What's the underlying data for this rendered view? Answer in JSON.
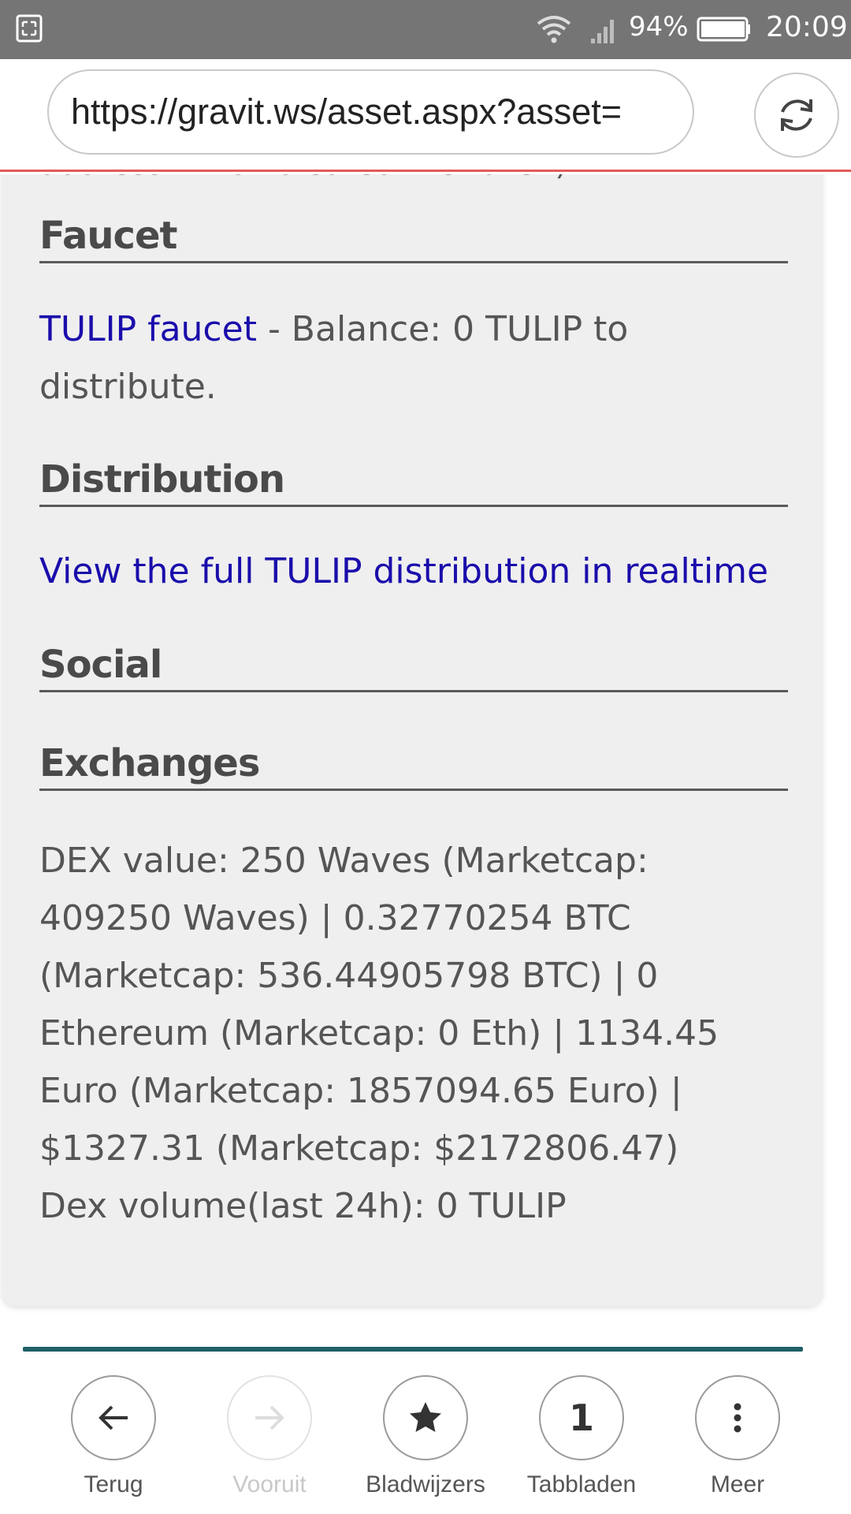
{
  "status_bar": {
    "battery_percent": "94%",
    "time": "20:09",
    "icons": [
      "screenshot-icon",
      "wifi-icon",
      "signal-icon",
      "battery-icon"
    ]
  },
  "browser": {
    "url": "https://gravit.ws/asset.aspx?asset=",
    "reload_icon": "reload-icon"
  },
  "page": {
    "clipped_top_text": "address which created the token)",
    "faucet": {
      "heading": "Faucet",
      "link_text": "TULIP faucet",
      "text": " - Balance: 0 TULIP to distribute."
    },
    "distribution": {
      "heading": "Distribution",
      "link_text": "View the full TULIP distribution in realtime"
    },
    "social": {
      "heading": "Social"
    },
    "exchanges": {
      "heading": "Exchanges",
      "dex_value": "DEX value: 250 Waves (Marketcap: 409250 Waves) | 0.32770254 BTC (Marketcap: 536.44905798 BTC) | 0 Ethereum (Marketcap: 0 Eth) | 1134.45 Euro (Marketcap: 1857094.65 Euro) | $1327.31 (Marketcap: $2172806.47)",
      "dex_volume": "Dex volume(last 24h): 0 TULIP"
    }
  },
  "bottom_nav": {
    "back": {
      "label": "Terug",
      "icon": "arrow-left-icon"
    },
    "forward": {
      "label": "Vooruit",
      "icon": "arrow-right-icon",
      "disabled": true
    },
    "bookmarks": {
      "label": "Bladwijzers",
      "icon": "star-icon"
    },
    "tabs": {
      "label": "Tabbladen",
      "count": "1"
    },
    "more": {
      "label": "Meer",
      "icon": "more-vertical-icon"
    }
  },
  "colors": {
    "status_bar": "#757575",
    "link": "#1a0dab",
    "progress_line": "#e25b5b",
    "divider": "#1e5f66",
    "card_bg": "#efefef"
  }
}
